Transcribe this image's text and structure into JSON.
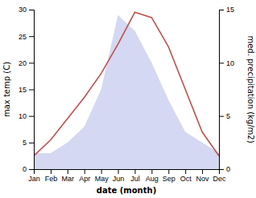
{
  "chart_data": {
    "type": "line",
    "categories": [
      "Jan",
      "Feb",
      "Mar",
      "Apr",
      "May",
      "Jun",
      "Jul",
      "Aug",
      "Sep",
      "Oct",
      "Nov",
      "Dec"
    ],
    "series": [
      {
        "type": "area",
        "axis": "y2",
        "color": "#b0b8e8",
        "values": [
          1.5,
          1.5,
          2.5,
          4.0,
          7.5,
          14.5,
          13.0,
          10.0,
          6.5,
          3.5,
          2.5,
          1.5
        ]
      },
      {
        "type": "line",
        "color": "#c0504d",
        "values": [
          2.5,
          5.5,
          9.5,
          13.5,
          18.0,
          23.5,
          29.5,
          28.5,
          23.0,
          15.0,
          7.0,
          2.5
        ]
      }
    ],
    "xlabel": "date (month)",
    "ylabel": "max temp (C)",
    "y2label": "med. precipitation (kg/m2)",
    "ylim": [
      0,
      30
    ],
    "yticks": [
      0,
      5,
      10,
      15,
      20,
      25,
      30
    ],
    "y2lim": [
      0,
      15
    ],
    "y2ticks": [
      0,
      5,
      10,
      15
    ],
    "grid": false
  }
}
